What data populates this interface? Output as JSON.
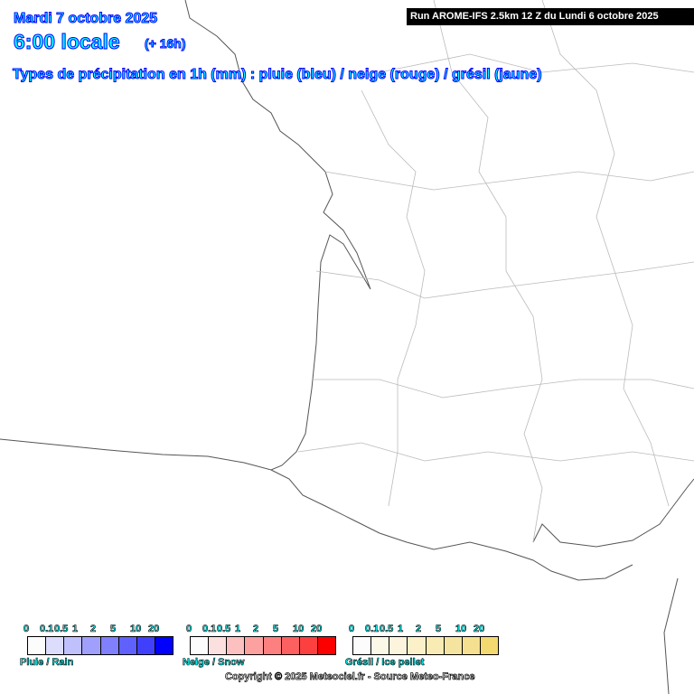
{
  "header": {
    "date": "Mardi 7 octobre 2025",
    "time": "6:00 locale",
    "lead": "(+ 16h)",
    "subtitle": "Types de précipitation en 1h (mm) : pluie (bleu) / neige (rouge) / grésil (jaune)",
    "run": "Run AROME-IFS 2.5km 12 Z du Lundi 6 octobre 2025"
  },
  "legend": {
    "ticks": [
      "0",
      "0.1",
      "0.5",
      "1",
      "2",
      "5",
      "10",
      "20"
    ],
    "scales": [
      {
        "name": "Pluie / Rain",
        "colors": [
          "#fcfcfc",
          "#dcdcfc",
          "#c0c0fc",
          "#a0a0fc",
          "#8080fc",
          "#6060fc",
          "#4040fc",
          "#0000fc"
        ]
      },
      {
        "name": "Neige / Snow",
        "colors": [
          "#fcfcfc",
          "#fce0e0",
          "#fcc0c0",
          "#fca0a0",
          "#fc8080",
          "#fc6060",
          "#fc4040",
          "#fc0000"
        ]
      },
      {
        "name": "Grésil / Ice pellet",
        "colors": [
          "#fcfcfc",
          "#fcf8e8",
          "#fcf4dc",
          "#fcf0c8",
          "#f8ecb4",
          "#f4e4a0",
          "#f4e090",
          "#f4d870"
        ]
      }
    ]
  },
  "copyright": "Copyright © 2025 Meteociel.fr - Source Meteo-France"
}
